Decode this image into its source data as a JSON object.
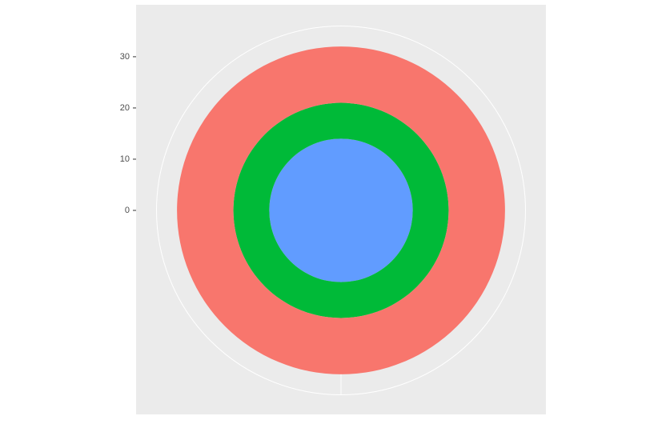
{
  "chart_data": {
    "type": "bar",
    "coord": "polar",
    "series": [
      {
        "color": "#619CFF",
        "values": [
          14
        ]
      },
      {
        "color": "#00BA38",
        "values": [
          7
        ]
      },
      {
        "color": "#F8766D",
        "values": [
          11
        ]
      }
    ],
    "ylim": [
      0,
      36
    ],
    "yticks": [
      0,
      10,
      20,
      30
    ],
    "grid": true
  }
}
